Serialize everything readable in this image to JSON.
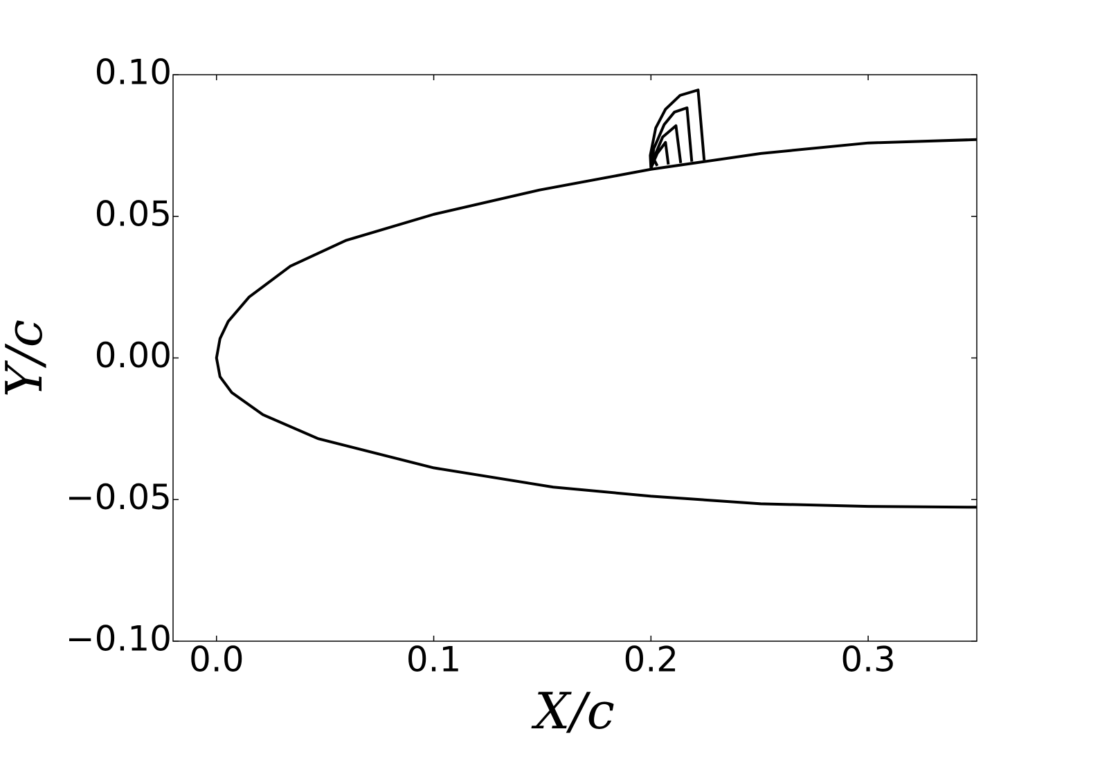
{
  "chart_data": {
    "type": "line",
    "xlabel": "X/c",
    "ylabel": "Y/c",
    "xlim": [
      -0.02,
      0.35
    ],
    "ylim": [
      -0.1,
      0.1
    ],
    "xticks": [
      {
        "value": 0,
        "label": "0.0"
      },
      {
        "value": 0.1,
        "label": "0.1"
      },
      {
        "value": 0.2,
        "label": "0.2"
      },
      {
        "value": 0.3,
        "label": "0.3"
      }
    ],
    "yticks": [
      {
        "value": -0.1,
        "label": "−0.10"
      },
      {
        "value": -0.05,
        "label": "−0.05"
      },
      {
        "value": 0,
        "label": "0.00"
      },
      {
        "value": 0.05,
        "label": "0.05"
      },
      {
        "value": 0.1,
        "label": "0.10"
      }
    ],
    "grid": false,
    "series": [
      {
        "color": "#000000",
        "x": [
          0.35,
          0.3,
          0.2506,
          0.2,
          0.1487,
          0.1,
          0.0596,
          0.034,
          0.015,
          0.0054,
          0.0016,
          0,
          0.0016,
          0.007,
          0.0213,
          0.0468,
          0.1,
          0.155,
          0.2,
          0.2506,
          0.3,
          0.35
        ],
        "values": [
          0.0771,
          0.0759,
          0.0722,
          0.0666,
          0.0593,
          0.0507,
          0.0415,
          0.0324,
          0.0215,
          0.0129,
          0.0068,
          0,
          -0.0066,
          -0.0122,
          -0.02,
          -0.0285,
          -0.0388,
          -0.0456,
          -0.0488,
          -0.0515,
          -0.0524,
          -0.0527
        ]
      },
      {
        "color": "#000000",
        "x": [
          0.2,
          0.1997,
          0.2022,
          0.2067,
          0.2134,
          0.2217,
          0.2245
        ],
        "values": [
          0.0671,
          0.0715,
          0.0812,
          0.0878,
          0.0927,
          0.0946,
          0.0698
        ]
      },
      {
        "color": "#000000",
        "x": [
          0.2,
          0.2013,
          0.2061,
          0.2108,
          0.2166,
          0.2188
        ],
        "values": [
          0.0671,
          0.0739,
          0.0824,
          0.0868,
          0.0883,
          0.0693
        ]
      },
      {
        "color": "#000000",
        "x": [
          0.2,
          0.2022,
          0.2054,
          0.2115,
          0.2137
        ],
        "values": [
          0.0671,
          0.0722,
          0.078,
          0.082,
          0.0688
        ]
      },
      {
        "color": "#000000",
        "x": [
          0.2,
          0.2029,
          0.2067,
          0.208
        ],
        "values": [
          0.0671,
          0.0722,
          0.0761,
          0.0683
        ]
      },
      {
        "color": "#000000",
        "x": [
          0.2,
          0.2016,
          0.2029
        ],
        "values": [
          0.067,
          0.0698,
          0.0678
        ]
      }
    ]
  }
}
